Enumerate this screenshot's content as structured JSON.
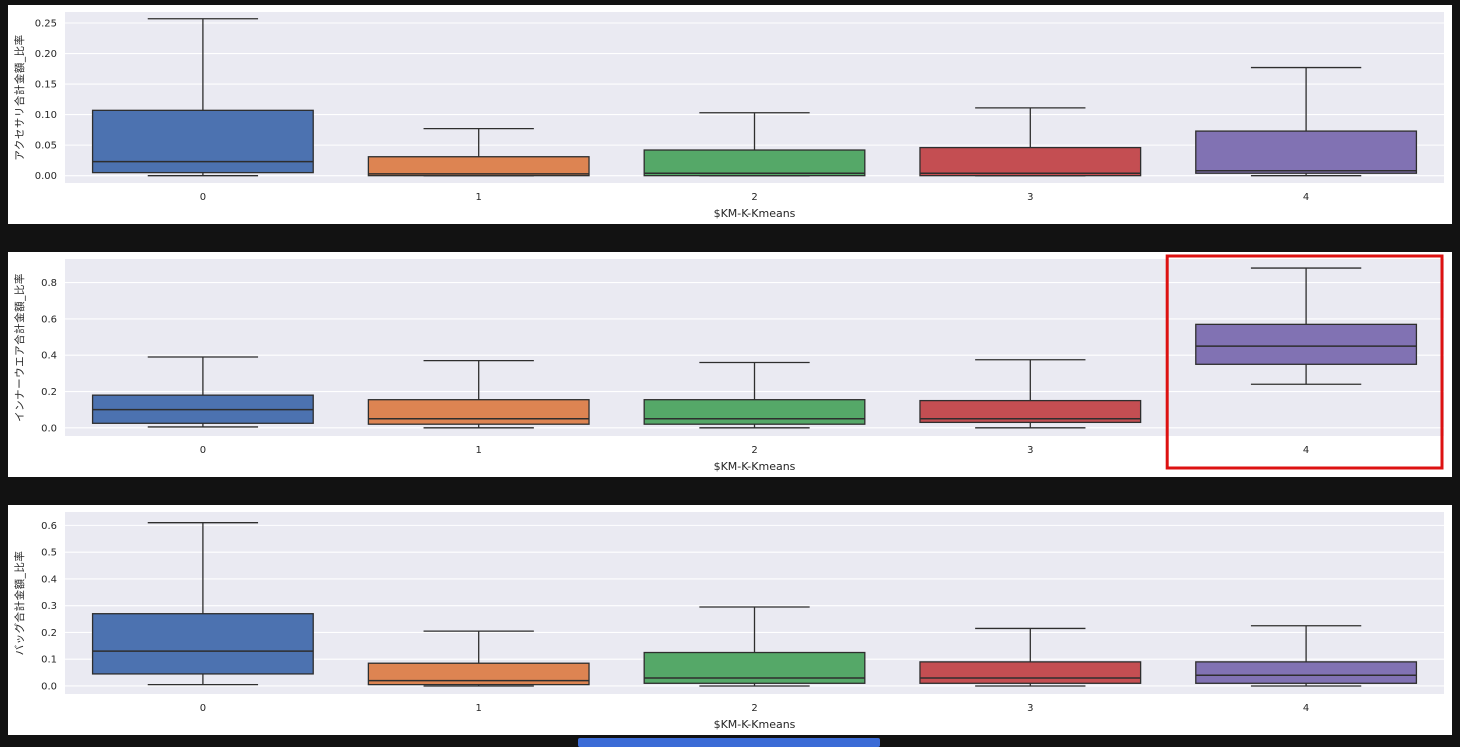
{
  "page": {
    "background": "#121212",
    "panel_background": "#ffffff",
    "plot_background": "#eaeaf2",
    "grid_color": "#ffffff",
    "box_edge_color": "#2e2e2e",
    "scrollbar_color": "#3b6bd6"
  },
  "palette": [
    "#4C72B0",
    "#DD8452",
    "#55A868",
    "#C44E52",
    "#8172B3"
  ],
  "chart_data": [
    {
      "type": "box",
      "title": "",
      "xlabel": "$KM-K-Kmeans",
      "ylabel": "アクセサリ合計金額_比率",
      "categories": [
        "0",
        "1",
        "2",
        "3",
        "4"
      ],
      "ylim": [
        -0.012,
        0.268
      ],
      "grid": true,
      "yticks": [
        {
          "v": 0.0,
          "label": "0.00"
        },
        {
          "v": 0.05,
          "label": "0.05"
        },
        {
          "v": 0.1,
          "label": "0.10"
        },
        {
          "v": 0.15,
          "label": "0.15"
        },
        {
          "v": 0.2,
          "label": "0.20"
        },
        {
          "v": 0.25,
          "label": "0.25"
        }
      ],
      "boxes": [
        {
          "whislo": 0.0,
          "q1": 0.005,
          "med": 0.023,
          "q3": 0.107,
          "whishi": 0.257
        },
        {
          "whislo": 0.0,
          "q1": 0.0,
          "med": 0.003,
          "q3": 0.031,
          "whishi": 0.077
        },
        {
          "whislo": 0.0,
          "q1": 0.0,
          "med": 0.004,
          "q3": 0.042,
          "whishi": 0.103
        },
        {
          "whislo": 0.0,
          "q1": 0.0,
          "med": 0.004,
          "q3": 0.046,
          "whishi": 0.111
        },
        {
          "whislo": 0.0,
          "q1": 0.004,
          "med": 0.008,
          "q3": 0.073,
          "whishi": 0.177
        }
      ]
    },
    {
      "type": "box",
      "title": "",
      "xlabel": "$KM-K-Kmeans",
      "ylabel": "インナーウエア合計金額_比率",
      "categories": [
        "0",
        "1",
        "2",
        "3",
        "4"
      ],
      "ylim": [
        -0.045,
        0.93
      ],
      "grid": true,
      "yticks": [
        {
          "v": 0.0,
          "label": "0.0"
        },
        {
          "v": 0.2,
          "label": "0.2"
        },
        {
          "v": 0.4,
          "label": "0.4"
        },
        {
          "v": 0.6,
          "label": "0.6"
        },
        {
          "v": 0.8,
          "label": "0.8"
        }
      ],
      "boxes": [
        {
          "whislo": 0.005,
          "q1": 0.025,
          "med": 0.1,
          "q3": 0.18,
          "whishi": 0.39
        },
        {
          "whislo": 0.0,
          "q1": 0.02,
          "med": 0.05,
          "q3": 0.155,
          "whishi": 0.37
        },
        {
          "whislo": 0.0,
          "q1": 0.02,
          "med": 0.05,
          "q3": 0.155,
          "whishi": 0.36
        },
        {
          "whislo": 0.0,
          "q1": 0.03,
          "med": 0.05,
          "q3": 0.15,
          "whishi": 0.375
        },
        {
          "whislo": 0.24,
          "q1": 0.35,
          "med": 0.45,
          "q3": 0.57,
          "whishi": 0.88
        }
      ],
      "highlight": {
        "category_index": 4,
        "color": "#dd1111"
      }
    },
    {
      "type": "box",
      "title": "",
      "xlabel": "$KM-K-Kmeans",
      "ylabel": "バッグ合計金額_比率",
      "categories": [
        "0",
        "1",
        "2",
        "3",
        "4"
      ],
      "ylim": [
        -0.03,
        0.65
      ],
      "grid": true,
      "yticks": [
        {
          "v": 0.0,
          "label": "0.0"
        },
        {
          "v": 0.1,
          "label": "0.1"
        },
        {
          "v": 0.2,
          "label": "0.2"
        },
        {
          "v": 0.3,
          "label": "0.3"
        },
        {
          "v": 0.4,
          "label": "0.4"
        },
        {
          "v": 0.5,
          "label": "0.5"
        },
        {
          "v": 0.6,
          "label": "0.6"
        }
      ],
      "boxes": [
        {
          "whislo": 0.005,
          "q1": 0.045,
          "med": 0.13,
          "q3": 0.27,
          "whishi": 0.61
        },
        {
          "whislo": 0.0,
          "q1": 0.005,
          "med": 0.02,
          "q3": 0.085,
          "whishi": 0.205
        },
        {
          "whislo": 0.0,
          "q1": 0.01,
          "med": 0.03,
          "q3": 0.125,
          "whishi": 0.295
        },
        {
          "whislo": 0.0,
          "q1": 0.01,
          "med": 0.03,
          "q3": 0.09,
          "whishi": 0.215
        },
        {
          "whislo": 0.0,
          "q1": 0.01,
          "med": 0.04,
          "q3": 0.09,
          "whishi": 0.225
        }
      ]
    }
  ]
}
